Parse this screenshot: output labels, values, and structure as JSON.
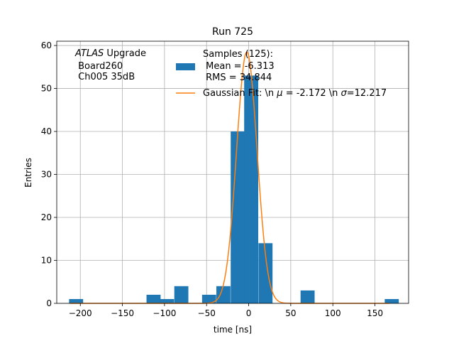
{
  "chart_data": {
    "type": "bar",
    "title": "Run 725",
    "xlabel": "time [ns]",
    "ylabel": "Entries",
    "xlim": [
      -228,
      190
    ],
    "ylim": [
      0,
      61
    ],
    "grid": true,
    "xticks": [
      -200,
      -150,
      -100,
      -50,
      0,
      50,
      100,
      150
    ],
    "yticks": [
      0,
      10,
      20,
      30,
      40,
      50,
      60
    ],
    "bin_width": 16.7,
    "histogram": {
      "bin_centers": [
        -205,
        -113,
        -97,
        -80,
        -47,
        -30,
        -13,
        3,
        20,
        70,
        170
      ],
      "counts": [
        1,
        2,
        1,
        4,
        2,
        4,
        40,
        53,
        14,
        3,
        1
      ],
      "color": "#1f77b4"
    },
    "gaussian_fit": {
      "mu": -2.172,
      "sigma": 12.217,
      "amplitude": 58.5,
      "color": "#ff7f0e"
    },
    "annotation": [
      "ATLAS",
      " Upgrade",
      " Board260",
      " Ch005 35dB"
    ],
    "legend": {
      "placement": "top-right",
      "samples_lines": [
        "Samples (125):",
        " Mean = -6.313",
        " RMS = 34.844"
      ],
      "fit_label_prefix": "Gaussian Fit: \\n ",
      "mu_symbol": "μ",
      "mu_text": " = -2.172 \\n ",
      "sigma_symbol": "σ",
      "sigma_text": "=12.217"
    }
  }
}
